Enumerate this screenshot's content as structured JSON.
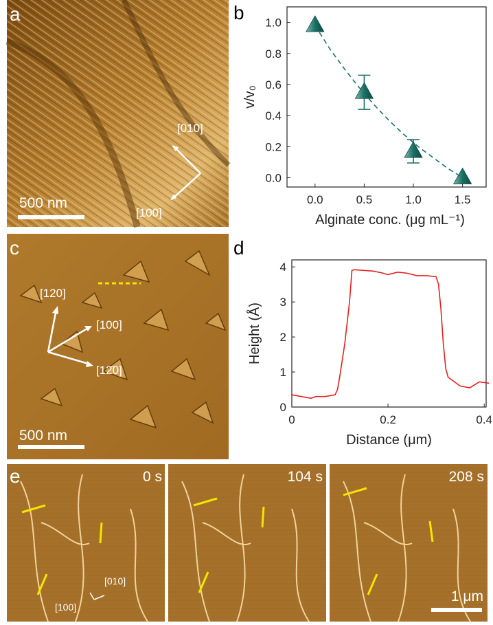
{
  "chart_data": [
    {
      "type": "scatter",
      "panel": "b",
      "x_label": "Alginate conc. (μg mL⁻¹)",
      "y_label": "v/v₀",
      "x": [
        0,
        0.5,
        1,
        1.5
      ],
      "series": [
        {
          "color": "#1b6f64",
          "values": [
            0.98,
            0.55,
            0.17,
            0.0
          ],
          "errors": [
            0,
            0.11,
            0.075,
            0
          ]
        },
        {
          "color": "#1b6f64",
          "style": "dashed",
          "x": [
            0,
            0.15,
            0.3,
            0.45,
            0.6,
            0.75,
            0.9,
            1.05,
            1.2,
            1.35,
            1.5
          ],
          "values": [
            0.98,
            0.83,
            0.7,
            0.58,
            0.47,
            0.37,
            0.28,
            0.2,
            0.13,
            0.06,
            0.0
          ]
        }
      ],
      "xlim": [
        -0.285,
        1.74
      ],
      "xticks": [
        {
          "value": 0,
          "label": "0.0"
        },
        0.5,
        {
          "value": 1,
          "label": "1.0"
        },
        1.5
      ],
      "ylim": [
        -0.06,
        1.1
      ],
      "yticks": [
        {
          "value": 0,
          "label": "0.0"
        },
        0.2,
        0.4,
        0.6,
        0.8,
        {
          "value": 1,
          "label": "1.0"
        }
      ]
    },
    {
      "type": "line",
      "panel": "d",
      "x_label": "Distance (μm)",
      "y_label": "Height (Å)",
      "x": [
        0,
        0.02,
        0.04,
        0.05,
        0.07,
        0.09,
        0.095,
        0.1,
        0.11,
        0.12,
        0.125,
        0.13,
        0.15,
        0.17,
        0.19,
        0.2,
        0.22,
        0.24,
        0.26,
        0.28,
        0.3,
        0.305,
        0.31,
        0.315,
        0.32,
        0.325,
        0.33,
        0.35,
        0.37,
        0.39,
        0.41
      ],
      "series": [
        {
          "color": "#e02020",
          "values": [
            0.35,
            0.3,
            0.25,
            0.3,
            0.3,
            0.35,
            0.5,
            0.9,
            1.8,
            3.0,
            3.9,
            3.92,
            3.9,
            3.88,
            3.82,
            3.78,
            3.85,
            3.82,
            3.75,
            3.75,
            3.72,
            3.5,
            2.8,
            1.8,
            1.1,
            0.85,
            0.8,
            0.6,
            0.55,
            0.72,
            0.68
          ]
        }
      ],
      "xlim": [
        0,
        0.404
      ],
      "xticks": [
        0,
        0.2,
        0.4
      ],
      "ylim": [
        0,
        4.2
      ],
      "yticks": [
        0,
        1,
        2,
        3,
        4
      ]
    }
  ],
  "panels": {
    "a": {
      "label": "a",
      "scale_bar": "500 nm",
      "directions": [
        "[010]",
        "[100]"
      ]
    },
    "b": {
      "label": "b"
    },
    "c": {
      "label": "c",
      "scale_bar": "500 nm",
      "directions": [
        "[120]",
        "[100]",
        "[12̄0]"
      ]
    },
    "d": {
      "label": "d"
    },
    "e": {
      "label": "e",
      "times": [
        "0 s",
        "104 s",
        "208 s"
      ],
      "scale_bar": "1 μm",
      "directions": [
        "[010]",
        "[100]"
      ]
    }
  }
}
